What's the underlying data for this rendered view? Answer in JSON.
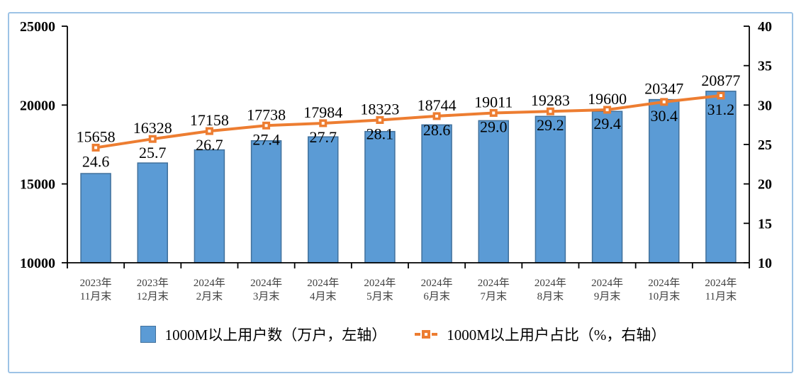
{
  "chart": {
    "frame_border_color": "#9dc3e6",
    "background": "#ffffff",
    "axis_color": "#000000",
    "category_label_color": "#404040",
    "data_label_color": "#000000"
  },
  "chart_data": {
    "type": "combo-bar-line",
    "title": "",
    "grid": false,
    "legend_position": "bottom",
    "categories": [
      [
        "2023年",
        "11月末"
      ],
      [
        "2023年",
        "12月末"
      ],
      [
        "2024年",
        "2月末"
      ],
      [
        "2024年",
        "3月末"
      ],
      [
        "2024年",
        "4月末"
      ],
      [
        "2024年",
        "5月末"
      ],
      [
        "2024年",
        "6月末"
      ],
      [
        "2024年",
        "7月末"
      ],
      [
        "2024年",
        "8月末"
      ],
      [
        "2024年",
        "9月末"
      ],
      [
        "2024年",
        "10月末"
      ],
      [
        "2024年",
        "11月末"
      ]
    ],
    "series": [
      {
        "name": "1000M以上用户数（万户，左轴）",
        "type": "bar",
        "axis": "left",
        "values": [
          15658,
          16328,
          17158,
          17738,
          17984,
          18323,
          18744,
          19011,
          19283,
          19600,
          20347,
          20877
        ],
        "labels": [
          "15658",
          "16328",
          "17158",
          "17738",
          "17984",
          "18323",
          "18744",
          "19011",
          "19283",
          "19600",
          "20347",
          "20877"
        ],
        "fill": "#5b9bd5",
        "stroke": "#41719c"
      },
      {
        "name": "1000M以上用户占比（%，右轴）",
        "type": "line",
        "axis": "right",
        "values": [
          24.6,
          25.7,
          26.7,
          27.4,
          27.7,
          28.1,
          28.6,
          29.0,
          29.2,
          29.4,
          30.4,
          31.2
        ],
        "labels": [
          "24.6",
          "25.7",
          "26.7",
          "27.4",
          "27.7",
          "28.1",
          "28.6",
          "29.0",
          "29.2",
          "29.4",
          "30.4",
          "31.2"
        ],
        "color": "#ed7d31"
      }
    ],
    "left_axis": {
      "min": 10000,
      "max": 25000,
      "tick_interval": 5000,
      "tick_labels": [
        "10000",
        "15000",
        "20000",
        "25000"
      ]
    },
    "right_axis": {
      "min": 10,
      "max": 40,
      "tick_interval": 5,
      "tick_labels": [
        "10",
        "15",
        "20",
        "25",
        "30",
        "35",
        "40"
      ]
    }
  }
}
